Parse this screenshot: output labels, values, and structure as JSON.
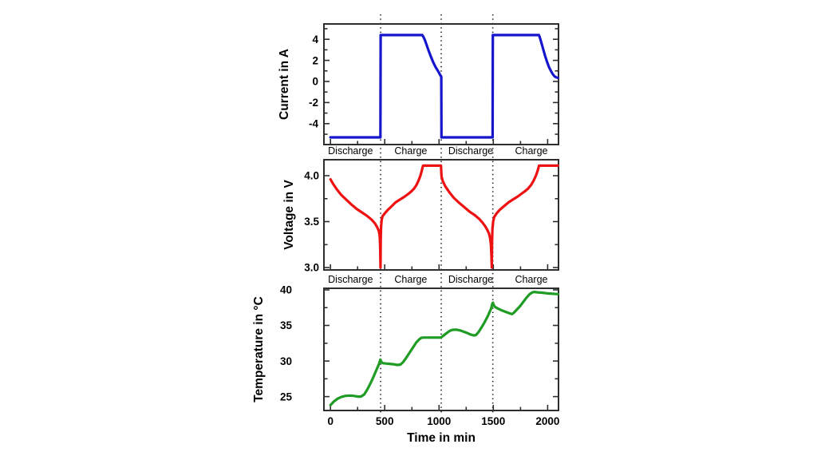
{
  "figure": {
    "background": "#ffffff",
    "frame_color": "#2e2e2e",
    "dotted_line_color": "#1a1a1a",
    "xlabel": "Time in min",
    "xlim": [
      -60,
      2100
    ],
    "x_ticks": [
      0,
      500,
      1000,
      1500,
      2000
    ],
    "x_tick_labels": [
      "0",
      "500",
      "1000",
      "1500",
      "2000"
    ],
    "x_minor_ticks": [
      250,
      750,
      1250,
      1750
    ],
    "phase_boundaries_min": [
      462,
      1020,
      1495
    ]
  },
  "phase_labels": {
    "items": [
      {
        "text": "Discharge",
        "color": "#ee1111",
        "t": 185
      },
      {
        "text": "Charge",
        "color": "#2121c8",
        "t": 740
      },
      {
        "text": "Discharge",
        "color": "#ee1111",
        "t": 1292
      },
      {
        "text": "Charge",
        "color": "#2121c8",
        "t": 1850
      }
    ]
  },
  "chart_data": [
    {
      "type": "line",
      "name": "current",
      "ylabel": "Current in A",
      "color": "#1616cd",
      "ylim": [
        -5.98,
        5.45
      ],
      "yticks": [
        4,
        2,
        0,
        -2,
        -4
      ],
      "ytick_labels": [
        "4",
        "2",
        "0",
        "-2",
        "-4"
      ],
      "y_minor_ticks": [
        5,
        3,
        1,
        -1,
        -3,
        -5
      ],
      "points": [
        [
          0,
          -5.3
        ],
        [
          460,
          -5.3
        ],
        [
          462,
          4.4
        ],
        [
          845,
          4.4
        ],
        [
          858,
          4.2
        ],
        [
          872,
          3.85
        ],
        [
          888,
          3.4
        ],
        [
          905,
          2.9
        ],
        [
          925,
          2.35
        ],
        [
          945,
          1.85
        ],
        [
          965,
          1.42
        ],
        [
          985,
          1.08
        ],
        [
          1000,
          0.82
        ],
        [
          1010,
          0.62
        ],
        [
          1017,
          0.5
        ],
        [
          1021,
          0.45
        ],
        [
          1022,
          -5.3
        ],
        [
          1493,
          -5.3
        ],
        [
          1495,
          4.4
        ],
        [
          1920,
          4.4
        ],
        [
          1932,
          4.05
        ],
        [
          1946,
          3.55
        ],
        [
          1962,
          2.95
        ],
        [
          1978,
          2.38
        ],
        [
          1995,
          1.85
        ],
        [
          2012,
          1.38
        ],
        [
          2030,
          1.0
        ],
        [
          2048,
          0.68
        ],
        [
          2065,
          0.48
        ],
        [
          2082,
          0.38
        ],
        [
          2095,
          0.35
        ]
      ]
    },
    {
      "type": "line",
      "name": "voltage",
      "ylabel": "Voltage in V",
      "color": "#ee1111",
      "ylim": [
        2.974,
        4.174
      ],
      "yticks": [
        4.0,
        3.5,
        3.0
      ],
      "ytick_labels": [
        "4.0",
        "3.5",
        "3.0"
      ],
      "y_minor_ticks": [
        3.75,
        3.25
      ],
      "points": [
        [
          0,
          3.96
        ],
        [
          25,
          3.91
        ],
        [
          60,
          3.85
        ],
        [
          100,
          3.79
        ],
        [
          145,
          3.74
        ],
        [
          190,
          3.69
        ],
        [
          240,
          3.64
        ],
        [
          290,
          3.6
        ],
        [
          340,
          3.56
        ],
        [
          380,
          3.52
        ],
        [
          410,
          3.48
        ],
        [
          430,
          3.44
        ],
        [
          445,
          3.4
        ],
        [
          452,
          3.36
        ],
        [
          456,
          3.3
        ],
        [
          459,
          3.18
        ],
        [
          461,
          3.0
        ],
        [
          463,
          3.3
        ],
        [
          466,
          3.44
        ],
        [
          472,
          3.52
        ],
        [
          480,
          3.56
        ],
        [
          500,
          3.59
        ],
        [
          530,
          3.63
        ],
        [
          565,
          3.67
        ],
        [
          600,
          3.71
        ],
        [
          640,
          3.74
        ],
        [
          680,
          3.77
        ],
        [
          715,
          3.8
        ],
        [
          745,
          3.83
        ],
        [
          770,
          3.86
        ],
        [
          793,
          3.9
        ],
        [
          812,
          3.95
        ],
        [
          828,
          4.0
        ],
        [
          840,
          4.05
        ],
        [
          848,
          4.09
        ],
        [
          853,
          4.11
        ],
        [
          1018,
          4.11
        ],
        [
          1023,
          3.99
        ],
        [
          1035,
          3.94
        ],
        [
          1060,
          3.88
        ],
        [
          1095,
          3.82
        ],
        [
          1135,
          3.76
        ],
        [
          1180,
          3.71
        ],
        [
          1230,
          3.66
        ],
        [
          1280,
          3.61
        ],
        [
          1330,
          3.57
        ],
        [
          1370,
          3.53
        ],
        [
          1400,
          3.49
        ],
        [
          1425,
          3.45
        ],
        [
          1445,
          3.41
        ],
        [
          1460,
          3.37
        ],
        [
          1470,
          3.32
        ],
        [
          1478,
          3.25
        ],
        [
          1483,
          3.12
        ],
        [
          1486,
          3.0
        ],
        [
          1488,
          3.28
        ],
        [
          1492,
          3.42
        ],
        [
          1498,
          3.5
        ],
        [
          1508,
          3.55
        ],
        [
          1530,
          3.59
        ],
        [
          1560,
          3.63
        ],
        [
          1600,
          3.67
        ],
        [
          1640,
          3.71
        ],
        [
          1680,
          3.74
        ],
        [
          1720,
          3.77
        ],
        [
          1755,
          3.8
        ],
        [
          1790,
          3.83
        ],
        [
          1820,
          3.86
        ],
        [
          1848,
          3.9
        ],
        [
          1872,
          3.95
        ],
        [
          1892,
          4.0
        ],
        [
          1907,
          4.05
        ],
        [
          1916,
          4.09
        ],
        [
          1921,
          4.11
        ],
        [
          2095,
          4.11
        ]
      ]
    },
    {
      "type": "line",
      "name": "temperature",
      "ylabel": "Temperature in °C",
      "color": "#1e9c23",
      "ylim": [
        23.05,
        40.22
      ],
      "yticks": [
        40,
        35,
        30,
        25
      ],
      "ytick_labels": [
        "40",
        "35",
        "30",
        "25"
      ],
      "y_minor_ticks": [
        37.5,
        32.5,
        27.5
      ],
      "points": [
        [
          0,
          23.8
        ],
        [
          30,
          24.3
        ],
        [
          65,
          24.7
        ],
        [
          100,
          24.95
        ],
        [
          140,
          25.1
        ],
        [
          180,
          25.15
        ],
        [
          215,
          25.1
        ],
        [
          250,
          25.0
        ],
        [
          280,
          25.0
        ],
        [
          310,
          25.3
        ],
        [
          340,
          26.0
        ],
        [
          370,
          26.9
        ],
        [
          400,
          27.9
        ],
        [
          425,
          28.8
        ],
        [
          448,
          29.6
        ],
        [
          460,
          30.2
        ],
        [
          468,
          29.9
        ],
        [
          480,
          29.7
        ],
        [
          510,
          29.65
        ],
        [
          545,
          29.6
        ],
        [
          580,
          29.55
        ],
        [
          615,
          29.45
        ],
        [
          645,
          29.5
        ],
        [
          672,
          29.9
        ],
        [
          700,
          30.5
        ],
        [
          730,
          31.2
        ],
        [
          760,
          31.9
        ],
        [
          790,
          32.6
        ],
        [
          815,
          33.0
        ],
        [
          835,
          33.25
        ],
        [
          855,
          33.3
        ],
        [
          920,
          33.3
        ],
        [
          1018,
          33.3
        ],
        [
          1030,
          33.45
        ],
        [
          1060,
          33.8
        ],
        [
          1090,
          34.15
        ],
        [
          1115,
          34.35
        ],
        [
          1140,
          34.4
        ],
        [
          1165,
          34.4
        ],
        [
          1195,
          34.3
        ],
        [
          1230,
          34.1
        ],
        [
          1265,
          33.9
        ],
        [
          1295,
          33.7
        ],
        [
          1320,
          33.6
        ],
        [
          1340,
          33.65
        ],
        [
          1365,
          34.1
        ],
        [
          1395,
          34.8
        ],
        [
          1425,
          35.6
        ],
        [
          1455,
          36.5
        ],
        [
          1480,
          37.4
        ],
        [
          1492,
          38.1
        ],
        [
          1496,
          38.2
        ],
        [
          1502,
          37.9
        ],
        [
          1515,
          37.6
        ],
        [
          1545,
          37.35
        ],
        [
          1580,
          37.1
        ],
        [
          1615,
          36.9
        ],
        [
          1650,
          36.7
        ],
        [
          1672,
          36.6
        ],
        [
          1690,
          36.8
        ],
        [
          1715,
          37.2
        ],
        [
          1745,
          37.7
        ],
        [
          1775,
          38.3
        ],
        [
          1805,
          38.9
        ],
        [
          1835,
          39.4
        ],
        [
          1860,
          39.65
        ],
        [
          1878,
          39.7
        ],
        [
          1910,
          39.65
        ],
        [
          1950,
          39.6
        ],
        [
          2000,
          39.5
        ],
        [
          2095,
          39.4
        ]
      ]
    }
  ]
}
